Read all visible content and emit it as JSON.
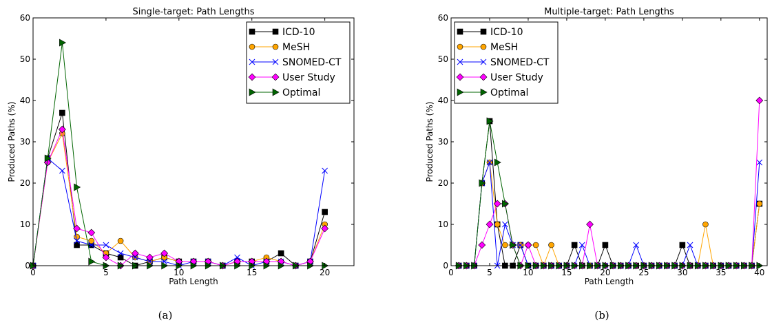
{
  "captions": [
    "(a)",
    "(b)"
  ],
  "chart_data": [
    {
      "type": "line",
      "title": "Single-target: Path Lengths",
      "xlabel": "Path Length",
      "ylabel": "Produced Paths (%)",
      "xlim": [
        0,
        22
      ],
      "ylim": [
        0,
        60
      ],
      "xticks": [
        0,
        5,
        10,
        15,
        20
      ],
      "yticks": [
        0,
        10,
        20,
        30,
        40,
        50,
        60
      ],
      "grid": false,
      "legend_position": "top-right",
      "x": [
        0,
        1,
        2,
        3,
        4,
        5,
        6,
        7,
        8,
        9,
        10,
        11,
        12,
        13,
        14,
        15,
        16,
        17,
        18,
        19,
        20
      ],
      "series": [
        {
          "name": "ICD-10",
          "color": "#000000",
          "marker": "square",
          "values": [
            0,
            26,
            37,
            5,
            5,
            3,
            2,
            0,
            1,
            2,
            1,
            1,
            1,
            0,
            1,
            1,
            1,
            3,
            0,
            1,
            13
          ]
        },
        {
          "name": "MeSH",
          "color": "#ffa500",
          "marker": "circle",
          "values": [
            0,
            25,
            32,
            7,
            6,
            3,
            6,
            2,
            1,
            2,
            1,
            1,
            1,
            0,
            1,
            1,
            2,
            1,
            0,
            1,
            10
          ]
        },
        {
          "name": "SNOMED-CT",
          "color": "#0000ff",
          "marker": "x",
          "values": [
            0,
            26,
            23,
            6,
            5,
            5,
            3,
            2,
            1,
            1,
            0,
            1,
            1,
            0,
            2,
            0,
            1,
            1,
            0,
            1,
            23
          ]
        },
        {
          "name": "User Study",
          "color": "#ff00ff",
          "marker": "diamond",
          "values": [
            0,
            25,
            33,
            9,
            8,
            2,
            0,
            3,
            2,
            3,
            1,
            1,
            1,
            0,
            1,
            1,
            1,
            1,
            0,
            1,
            9
          ]
        },
        {
          "name": "Optimal",
          "color": "#006400",
          "marker": "triangle-right",
          "values": [
            0,
            26,
            54,
            19,
            1,
            0,
            0,
            0,
            0,
            0,
            0,
            0,
            0,
            0,
            0,
            0,
            0,
            0,
            0,
            0,
            0
          ]
        }
      ]
    },
    {
      "type": "line",
      "title": "Multiple-target: Path Lengths",
      "xlabel": "Path Length",
      "ylabel": "Produced Paths (%)",
      "xlim": [
        0,
        41
      ],
      "ylim": [
        0,
        60
      ],
      "xticks": [
        0,
        5,
        10,
        15,
        20,
        25,
        30,
        35,
        40
      ],
      "yticks": [
        0,
        10,
        20,
        30,
        40,
        50,
        60
      ],
      "grid": false,
      "legend_position": "top-left",
      "x": [
        1,
        2,
        3,
        4,
        5,
        6,
        7,
        8,
        9,
        10,
        11,
        12,
        13,
        14,
        15,
        16,
        17,
        18,
        19,
        20,
        21,
        22,
        23,
        24,
        25,
        26,
        27,
        28,
        29,
        30,
        31,
        32,
        33,
        34,
        35,
        36,
        37,
        38,
        39,
        40
      ],
      "series": [
        {
          "name": "ICD-10",
          "color": "#000000",
          "marker": "square",
          "values": [
            0,
            0,
            0,
            20,
            35,
            10,
            0,
            0,
            5,
            0,
            0,
            0,
            0,
            0,
            0,
            5,
            0,
            0,
            0,
            5,
            0,
            0,
            0,
            0,
            0,
            0,
            0,
            0,
            0,
            5,
            0,
            0,
            0,
            0,
            0,
            0,
            0,
            0,
            0,
            15
          ]
        },
        {
          "name": "MeSH",
          "color": "#ffa500",
          "marker": "circle",
          "values": [
            0,
            0,
            0,
            20,
            25,
            10,
            5,
            5,
            5,
            5,
            5,
            0,
            5,
            0,
            0,
            0,
            0,
            0,
            0,
            0,
            0,
            0,
            0,
            0,
            0,
            0,
            0,
            0,
            0,
            0,
            0,
            0,
            10,
            0,
            0,
            0,
            0,
            0,
            0,
            15
          ]
        },
        {
          "name": "SNOMED-CT",
          "color": "#0000ff",
          "marker": "x",
          "values": [
            0,
            0,
            0,
            20,
            25,
            0,
            10,
            5,
            5,
            0,
            0,
            0,
            0,
            0,
            0,
            0,
            5,
            0,
            0,
            0,
            0,
            0,
            0,
            5,
            0,
            0,
            0,
            0,
            0,
            0,
            5,
            0,
            0,
            0,
            0,
            0,
            0,
            0,
            0,
            25
          ]
        },
        {
          "name": "User Study",
          "color": "#ff00ff",
          "marker": "diamond",
          "values": [
            0,
            0,
            0,
            5,
            10,
            15,
            15,
            5,
            0,
            5,
            0,
            0,
            0,
            0,
            0,
            0,
            0,
            10,
            0,
            0,
            0,
            0,
            0,
            0,
            0,
            0,
            0,
            0,
            0,
            0,
            0,
            0,
            0,
            0,
            0,
            0,
            0,
            0,
            0,
            40
          ]
        },
        {
          "name": "Optimal",
          "color": "#006400",
          "marker": "triangle-right",
          "values": [
            0,
            0,
            0,
            20,
            35,
            25,
            15,
            5,
            0,
            0,
            0,
            0,
            0,
            0,
            0,
            0,
            0,
            0,
            0,
            0,
            0,
            0,
            0,
            0,
            0,
            0,
            0,
            0,
            0,
            0,
            0,
            0,
            0,
            0,
            0,
            0,
            0,
            0,
            0,
            0
          ]
        }
      ]
    }
  ]
}
